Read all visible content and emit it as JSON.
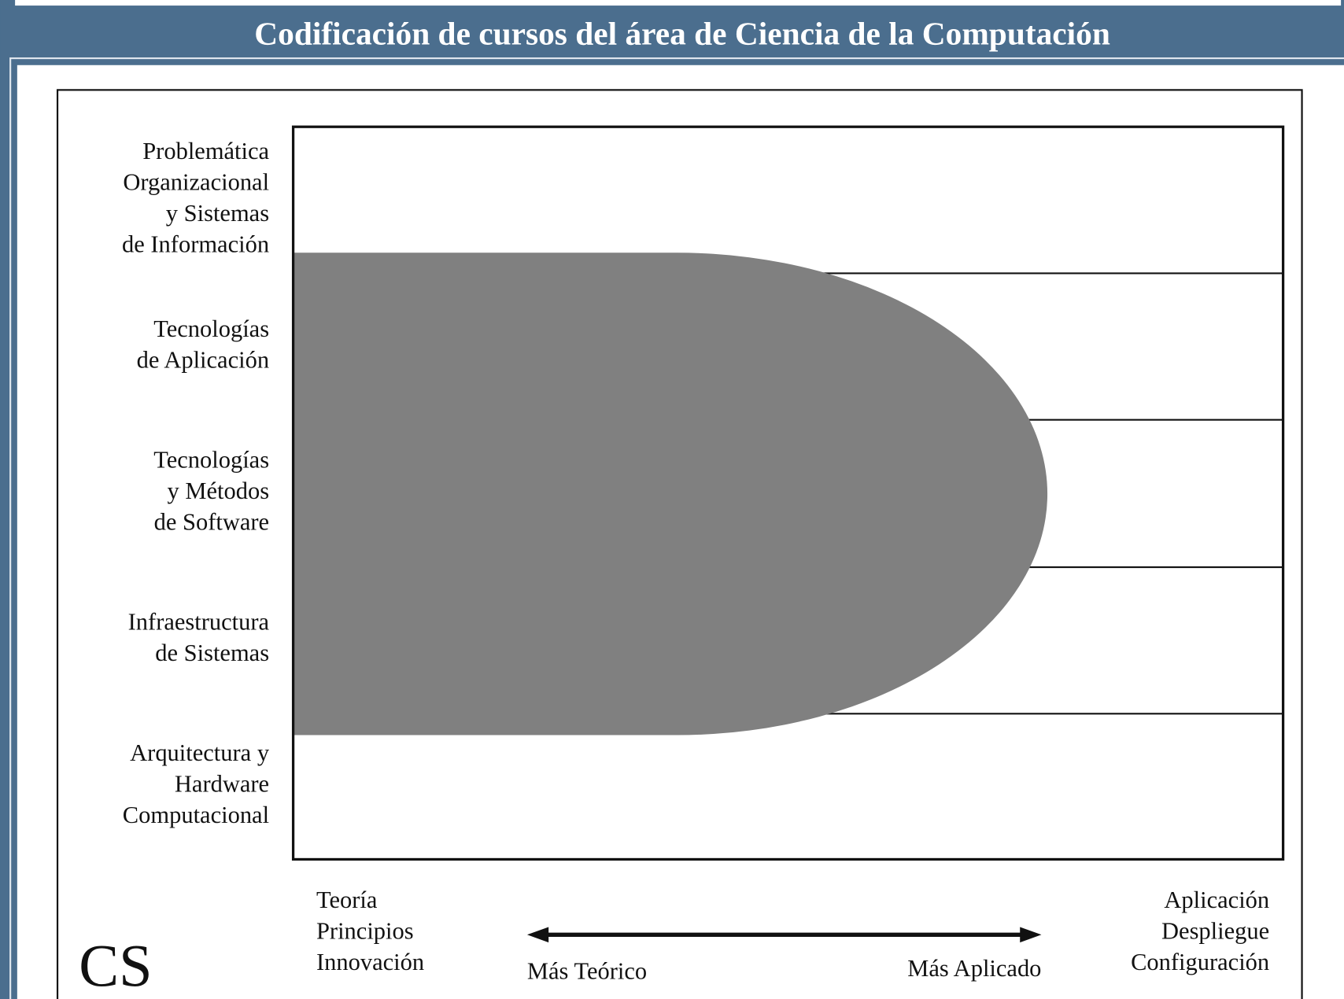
{
  "header": {
    "title": "Codificación de cursos del área de Ciencia de la Computación"
  },
  "rows": [
    [
      "Problemática",
      "Organizacional",
      "y Sistemas",
      "de Información"
    ],
    [
      "Tecnologías",
      "de Aplicación"
    ],
    [
      "Tecnologías",
      "y Métodos",
      "de Software"
    ],
    [
      "Infraestructura",
      "de Sistemas"
    ],
    [
      "Arquitectura y",
      "Hardware",
      "Computacional"
    ]
  ],
  "left_end": [
    "Teoría",
    "Principios",
    "Innovación"
  ],
  "right_end": [
    "Aplicación",
    "Despliegue",
    "Configuración"
  ],
  "arrow": {
    "left": "Más Teórico",
    "right": "Más Aplicado"
  },
  "logo": "CS"
}
